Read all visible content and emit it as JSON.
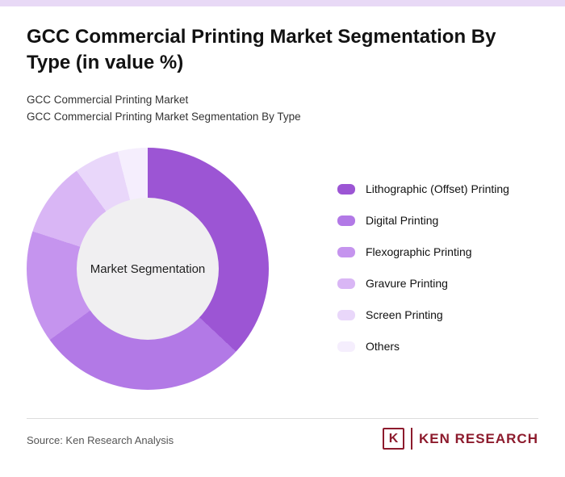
{
  "header": {
    "title": "GCC Commercial Printing Market Segmentation By Type (in value %)",
    "subtitle1": "GCC Commercial Printing Market",
    "subtitle2": "GCC Commercial Printing Market Segmentation By Type"
  },
  "chart_data": {
    "type": "pie",
    "subtype": "donut",
    "title": "GCC Commercial Printing Market Segmentation By Type (in value %)",
    "center_label": "Market Segmentation",
    "legend_position": "right",
    "start_angle_deg": 0,
    "direction": "clockwise",
    "segments": [
      {
        "label": "Lithographic (Offset) Printing",
        "value": 37,
        "color": "#9c55d4"
      },
      {
        "label": "Digital Printing",
        "value": 28,
        "color": "#b279e6"
      },
      {
        "label": "Flexographic Printing",
        "value": 15,
        "color": "#c594ee"
      },
      {
        "label": "Gravure Printing",
        "value": 10,
        "color": "#d9b6f5"
      },
      {
        "label": "Screen Printing",
        "value": 6,
        "color": "#e9d7fa"
      },
      {
        "label": "Others",
        "value": 4,
        "color": "#f5eefd"
      }
    ]
  },
  "footer": {
    "source": "Source: Ken Research Analysis",
    "logo_letter": "K",
    "logo_text": "KEN RESEARCH",
    "logo_color": "#8d1b2d"
  },
  "accent": {
    "top_bar_color": "#e8d9f6",
    "donut_hole_color": "#f0eff1"
  }
}
